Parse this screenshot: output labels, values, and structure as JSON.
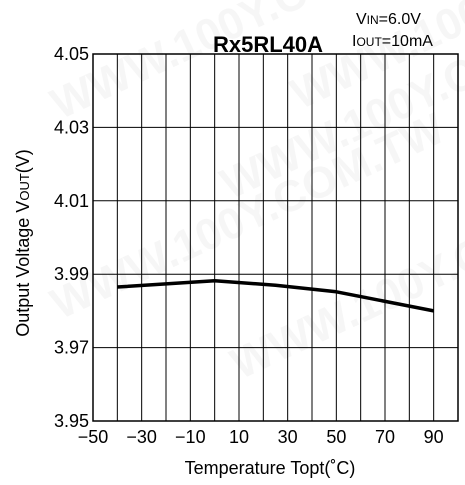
{
  "chart_data": {
    "type": "line",
    "title": "Rx5RL40A",
    "conditions": [
      {
        "main": "V",
        "sub": "IN",
        "rest": "=6.0V"
      },
      {
        "main": "I",
        "sub": "OUT",
        "rest": "=10mA"
      }
    ],
    "xlabel": "Temperature Topt(˚C)",
    "ylabel": "Output Voltage V",
    "ylabel_sub": "OUT",
    "ylabel_unit": "(V)",
    "xlim": [
      -50,
      100
    ],
    "ylim": [
      3.95,
      4.05
    ],
    "x_ticks": [
      "−50",
      "−30",
      "−10",
      "10",
      "30",
      "50",
      "70",
      "90"
    ],
    "y_ticks": [
      "3.95",
      "3.97",
      "3.99",
      "4.01",
      "4.03",
      "4.05"
    ],
    "x_tick_values": [
      -50,
      -30,
      -10,
      10,
      30,
      50,
      70,
      90
    ],
    "y_tick_values": [
      3.95,
      3.97,
      3.99,
      4.01,
      4.03,
      4.05
    ],
    "grid_x_values": [
      -50,
      -40,
      -30,
      -20,
      -10,
      0,
      10,
      20,
      30,
      40,
      50,
      60,
      70,
      80,
      90,
      100
    ],
    "grid_y_values": [
      3.95,
      3.97,
      3.99,
      4.01,
      4.03,
      4.05
    ],
    "grid": true,
    "series": [
      {
        "x": [
          -40,
          0,
          25,
          50,
          90
        ],
        "y": [
          3.9865,
          3.9882,
          3.987,
          3.9852,
          3.98
        ]
      }
    ],
    "watermark": "WWW.100Y.COM.TW"
  }
}
